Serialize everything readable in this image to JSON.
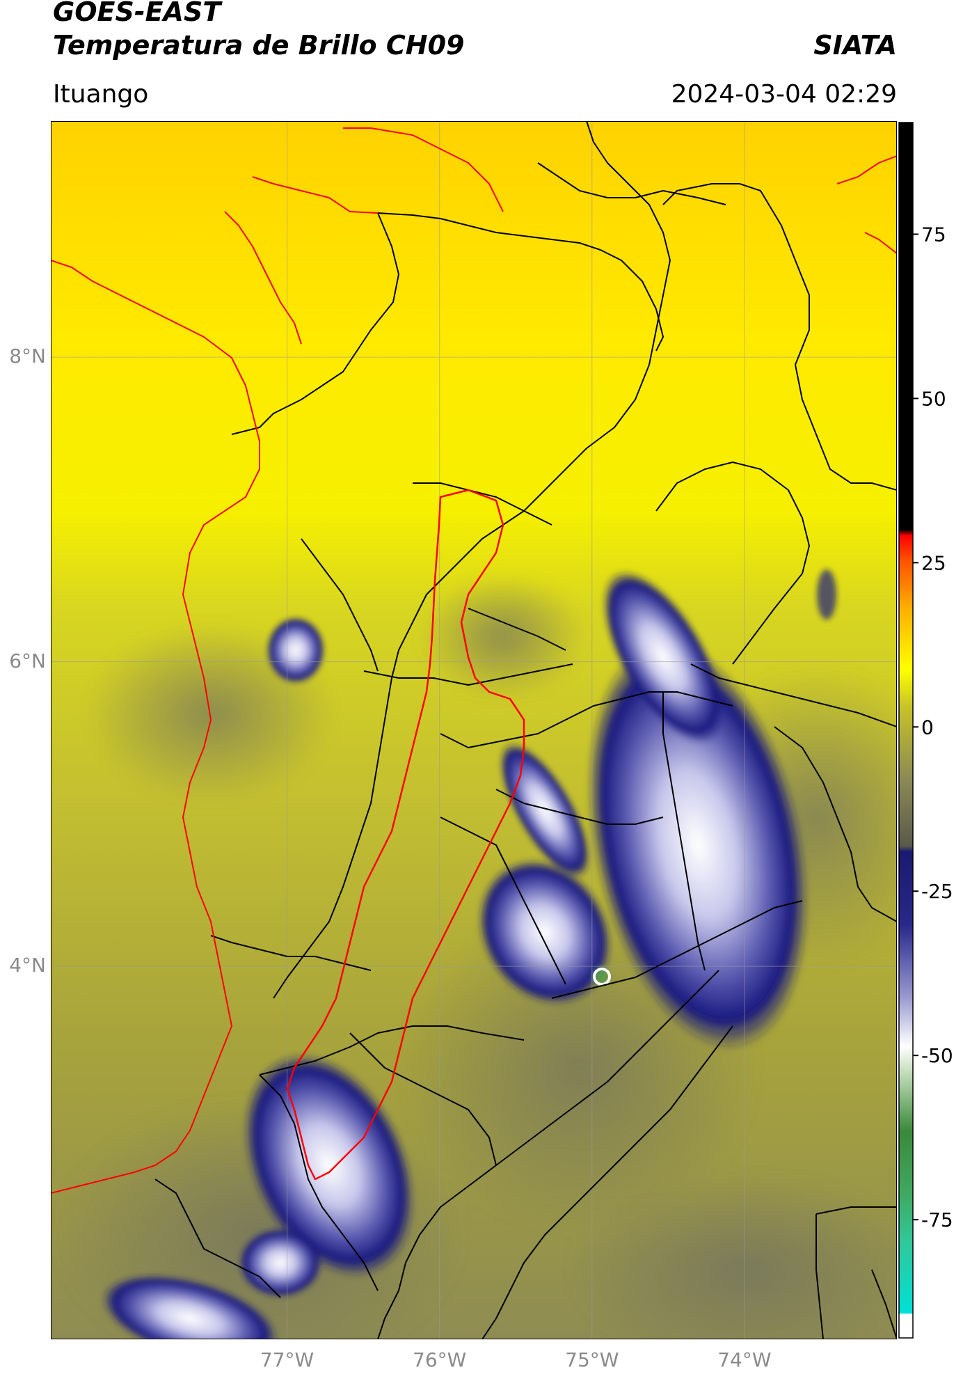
{
  "header": {
    "satellite": "GOES-EAST",
    "product": "Temperatura de Brillo CH09",
    "agency": "SIATA",
    "region": "Ituango",
    "datetime": "2024-03-04 02:29"
  },
  "map": {
    "lat_labels": [
      "8°N",
      "6°N",
      "4°N"
    ],
    "lon_labels": [
      "77°W",
      "76°W",
      "75°W",
      "74°W"
    ],
    "lat_values": [
      8,
      6,
      4
    ],
    "lon_values": [
      -77,
      -76,
      -75,
      -74
    ],
    "extent": {
      "lon_min": -78.55,
      "lon_max": -73.0,
      "lat_min": 1.55,
      "lat_max": 9.55
    },
    "colors": {
      "land_border": "#000000",
      "basin_border": "#ff0000",
      "coast": "#ff0000"
    }
  },
  "colorbar": {
    "labels": [
      "75",
      "50",
      "25",
      "0",
      "-25",
      "-50",
      "-75"
    ],
    "values": [
      75,
      50,
      25,
      0,
      -25,
      -50,
      -75
    ],
    "range": [
      -93,
      92
    ],
    "units": ""
  }
}
